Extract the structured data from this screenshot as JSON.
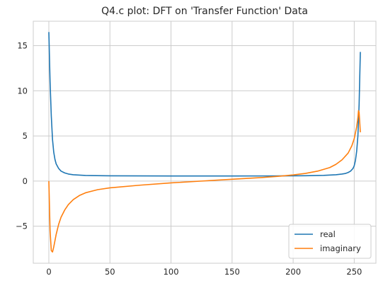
{
  "chart_data": {
    "type": "line",
    "title": "Q4.c plot: DFT on 'Transfer Function' Data",
    "xlabel": "",
    "ylabel": "",
    "xlim": [
      -12.75,
      267.75
    ],
    "ylim": [
      -9.1,
      17.7
    ],
    "xticks": [
      0,
      50,
      100,
      150,
      200,
      250
    ],
    "yticks": [
      -5,
      0,
      5,
      10,
      15
    ],
    "grid": true,
    "legend_position": "lower-right",
    "series": [
      {
        "name": "real",
        "color": "#1f77b4",
        "points": [
          [
            0,
            16.5
          ],
          [
            1,
            11.0
          ],
          [
            2,
            7.2
          ],
          [
            3,
            4.6
          ],
          [
            4,
            3.2
          ],
          [
            5,
            2.4
          ],
          [
            6,
            1.9
          ],
          [
            8,
            1.4
          ],
          [
            10,
            1.1
          ],
          [
            13,
            0.9
          ],
          [
            16,
            0.78
          ],
          [
            20,
            0.7
          ],
          [
            30,
            0.62
          ],
          [
            50,
            0.58
          ],
          [
            100,
            0.56
          ],
          [
            150,
            0.56
          ],
          [
            190,
            0.57
          ],
          [
            210,
            0.59
          ],
          [
            225,
            0.63
          ],
          [
            235,
            0.7
          ],
          [
            240,
            0.78
          ],
          [
            243,
            0.85
          ],
          [
            245,
            0.95
          ],
          [
            247,
            1.1
          ],
          [
            249,
            1.4
          ],
          [
            250,
            1.7
          ],
          [
            251,
            2.3
          ],
          [
            252,
            3.3
          ],
          [
            253,
            5.0
          ],
          [
            254,
            8.5
          ],
          [
            255,
            14.3
          ]
        ]
      },
      {
        "name": "imaginary",
        "color": "#ff7f0e",
        "points": [
          [
            0,
            0.0
          ],
          [
            1,
            -5.5
          ],
          [
            2,
            -7.7
          ],
          [
            3,
            -7.85
          ],
          [
            4,
            -7.3
          ],
          [
            5,
            -6.6
          ],
          [
            6,
            -5.9
          ],
          [
            8,
            -4.8
          ],
          [
            10,
            -4.0
          ],
          [
            13,
            -3.2
          ],
          [
            16,
            -2.6
          ],
          [
            20,
            -2.05
          ],
          [
            25,
            -1.6
          ],
          [
            30,
            -1.3
          ],
          [
            40,
            -0.95
          ],
          [
            50,
            -0.75
          ],
          [
            75,
            -0.45
          ],
          [
            100,
            -0.2
          ],
          [
            125,
            0.0
          ],
          [
            150,
            0.2
          ],
          [
            175,
            0.4
          ],
          [
            190,
            0.55
          ],
          [
            200,
            0.68
          ],
          [
            210,
            0.85
          ],
          [
            220,
            1.1
          ],
          [
            230,
            1.5
          ],
          [
            235,
            1.85
          ],
          [
            240,
            2.35
          ],
          [
            245,
            3.1
          ],
          [
            248,
            3.9
          ],
          [
            250,
            4.7
          ],
          [
            252,
            6.0
          ],
          [
            253,
            7.0
          ],
          [
            253.5,
            7.8
          ],
          [
            254,
            7.6
          ],
          [
            254.5,
            6.5
          ],
          [
            255,
            5.4
          ]
        ]
      }
    ]
  }
}
